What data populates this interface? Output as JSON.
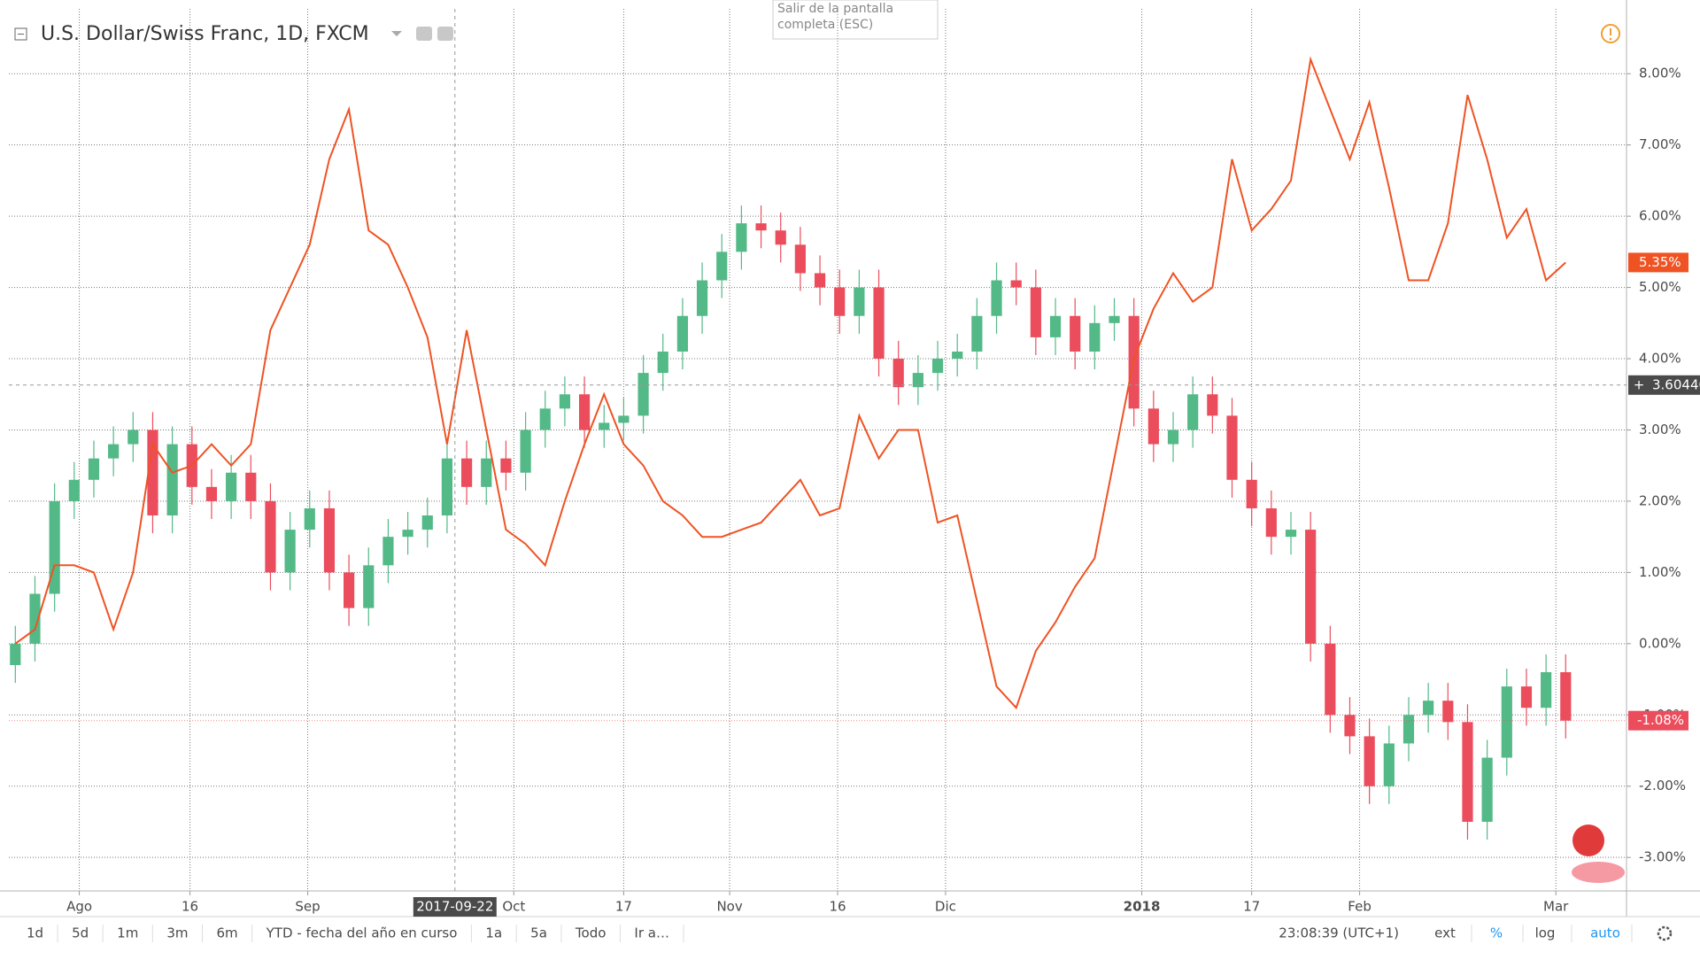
{
  "chart_data": {
    "type": "candlestick",
    "title": "U.S. Dollar/Swiss Franc, 1D, FXCM",
    "tooltip": "Salir de la pantalla completa (ESC)",
    "ylim": [
      -3.47,
      8.91
    ],
    "yticks": [
      {
        "value": -3,
        "label": "-3.00%"
      },
      {
        "value": -2,
        "label": "-2.00%"
      },
      {
        "value": -1,
        "label": "-1.00%"
      },
      {
        "value": 0,
        "label": "0.00%"
      },
      {
        "value": 1,
        "label": "1.00%"
      },
      {
        "value": 2,
        "label": "2.00%"
      },
      {
        "value": 3,
        "label": "3.00%"
      },
      {
        "value": 4,
        "label": "4.00%"
      },
      {
        "value": 5,
        "label": "5.00%"
      },
      {
        "value": 6,
        "label": "6.00%"
      },
      {
        "value": 7,
        "label": "7.00%"
      },
      {
        "value": 8,
        "label": "8.00%"
      }
    ],
    "xlim": [
      -0.33,
      82.1
    ],
    "xticks": [
      {
        "value": 3.26,
        "label": "Ago"
      },
      {
        "value": 8.9,
        "label": "16"
      },
      {
        "value": 14.9,
        "label": "Sep"
      },
      {
        "value": 25.4,
        "label": "Oct"
      },
      {
        "value": 31.0,
        "label": "17"
      },
      {
        "value": 36.4,
        "label": "Nov"
      },
      {
        "value": 41.9,
        "label": "16"
      },
      {
        "value": 47.4,
        "label": "Dic"
      },
      {
        "value": 57.4,
        "label": "2018"
      },
      {
        "value": 63.0,
        "label": "17"
      },
      {
        "value": 68.5,
        "label": "Feb"
      },
      {
        "value": 78.5,
        "label": "Mar"
      }
    ],
    "grid": true,
    "crosshair": {
      "x": 22.4,
      "x_label": "2017-09-22",
      "y": 3.63,
      "y_label": "3.60440"
    },
    "candles": {
      "up_color": "#53b987",
      "down_color": "#eb4d5c",
      "last_label": "-1.08%",
      "open": [
        -0.3,
        0.0,
        0.7,
        2.0,
        2.3,
        2.6,
        2.8,
        3.0,
        1.8,
        2.8,
        2.2,
        2.0,
        2.4,
        2.0,
        1.0,
        1.6,
        1.9,
        1.0,
        0.5,
        1.1,
        1.5,
        1.6,
        1.8,
        2.6,
        2.2,
        2.6,
        2.4,
        3.0,
        3.3,
        3.5,
        3.0,
        3.1,
        3.2,
        3.8,
        4.1,
        4.6,
        5.1,
        5.5,
        5.9,
        5.8,
        5.6,
        5.2,
        5.0,
        4.6,
        5.0,
        4.0,
        3.6,
        3.8,
        4.0,
        4.1,
        4.6,
        5.1,
        5.0,
        4.3,
        4.6,
        4.1,
        4.5,
        4.6,
        3.3,
        2.8,
        3.0,
        3.5,
        3.2,
        2.3,
        1.9,
        1.5,
        1.6,
        0.0,
        -1.0,
        -1.3,
        -2.0,
        -1.4,
        -1.0,
        -0.8,
        -1.1,
        -2.5,
        -1.6,
        -0.6,
        -0.9,
        -0.4
      ],
      "high": [
        0.25,
        0.95,
        2.25,
        2.55,
        2.85,
        3.05,
        3.25,
        3.25,
        3.05,
        3.05,
        2.45,
        2.65,
        2.65,
        2.25,
        1.85,
        2.15,
        2.15,
        1.25,
        1.35,
        1.75,
        1.85,
        2.05,
        2.85,
        2.85,
        2.85,
        2.85,
        3.25,
        3.55,
        3.75,
        3.75,
        3.35,
        3.45,
        4.05,
        4.35,
        4.85,
        5.35,
        5.75,
        6.15,
        6.15,
        6.05,
        5.85,
        5.45,
        5.25,
        5.25,
        5.25,
        4.25,
        4.05,
        4.25,
        4.35,
        4.85,
        5.35,
        5.35,
        5.25,
        4.85,
        4.85,
        4.75,
        4.85,
        4.85,
        3.55,
        3.25,
        3.75,
        3.75,
        3.45,
        2.55,
        2.15,
        1.85,
        1.85,
        0.25,
        -0.75,
        -1.05,
        -1.15,
        -0.75,
        -0.55,
        -0.55,
        -0.85,
        -1.35,
        -0.35,
        -0.35,
        -0.15,
        -0.15
      ],
      "low": [
        -0.55,
        -0.25,
        0.45,
        1.75,
        2.05,
        2.35,
        2.55,
        1.55,
        1.55,
        1.95,
        1.75,
        1.75,
        1.75,
        0.75,
        0.75,
        1.35,
        0.75,
        0.25,
        0.25,
        0.85,
        1.25,
        1.35,
        1.55,
        1.95,
        1.95,
        2.15,
        2.15,
        2.75,
        3.05,
        2.75,
        2.75,
        2.85,
        2.95,
        3.55,
        3.85,
        4.35,
        4.85,
        5.25,
        5.55,
        5.35,
        4.95,
        4.75,
        4.35,
        4.35,
        3.75,
        3.35,
        3.35,
        3.55,
        3.75,
        3.85,
        4.35,
        4.75,
        4.05,
        4.05,
        3.85,
        3.85,
        4.25,
        3.05,
        2.55,
        2.55,
        2.75,
        2.95,
        2.05,
        1.65,
        1.25,
        1.25,
        -0.25,
        -1.25,
        -1.55,
        -2.25,
        -2.25,
        -1.65,
        -1.25,
        -1.35,
        -2.75,
        -2.75,
        -1.85,
        -1.15,
        -1.15,
        -1.33
      ],
      "close": [
        0.0,
        0.7,
        2.0,
        2.3,
        2.6,
        2.8,
        3.0,
        1.8,
        2.8,
        2.2,
        2.0,
        2.4,
        2.0,
        1.0,
        1.6,
        1.9,
        1.0,
        0.5,
        1.1,
        1.5,
        1.6,
        1.8,
        2.6,
        2.2,
        2.6,
        2.4,
        3.0,
        3.3,
        3.5,
        3.0,
        3.1,
        3.2,
        3.8,
        4.1,
        4.6,
        5.1,
        5.5,
        5.9,
        5.8,
        5.6,
        5.2,
        5.0,
        4.6,
        5.0,
        4.0,
        3.6,
        3.8,
        4.0,
        4.1,
        4.6,
        5.1,
        5.0,
        4.3,
        4.6,
        4.1,
        4.5,
        4.6,
        3.3,
        2.8,
        3.0,
        3.5,
        3.2,
        2.3,
        1.9,
        1.5,
        1.6,
        0.0,
        -1.0,
        -1.3,
        -2.0,
        -1.4,
        -1.0,
        -0.8,
        -1.1,
        -2.5,
        -1.6,
        -0.6,
        -0.9,
        -0.4,
        -1.08
      ]
    },
    "series": [
      {
        "color": "#ef5323",
        "last_label": "5.35%",
        "values": [
          0.0,
          0.2,
          1.1,
          1.1,
          1.0,
          0.2,
          1.0,
          2.8,
          2.4,
          2.5,
          2.8,
          2.5,
          2.8,
          4.4,
          5.0,
          5.6,
          6.8,
          7.5,
          5.8,
          5.6,
          5.0,
          4.3,
          2.8,
          4.4,
          3.0,
          1.6,
          1.4,
          1.1,
          2.0,
          2.8,
          3.5,
          2.8,
          2.5,
          2.0,
          1.8,
          1.5,
          1.5,
          1.6,
          1.7,
          2.0,
          2.3,
          1.8,
          1.9,
          3.2,
          2.6,
          3.0,
          3.0,
          1.7,
          1.8,
          0.6,
          -0.6,
          -0.9,
          -0.1,
          0.3,
          0.8,
          1.2,
          2.6,
          4.0,
          4.7,
          5.2,
          4.8,
          5.0,
          6.8,
          5.8,
          6.1,
          6.5,
          8.2,
          7.5,
          6.8,
          7.6,
          6.4,
          5.1,
          5.1,
          5.9,
          7.7,
          6.8,
          5.7,
          6.1,
          5.1,
          5.35
        ]
      }
    ],
    "toolbar": {
      "ranges": [
        "1d",
        "5d",
        "1m",
        "3m",
        "6m",
        "YTD - fecha del año en curso",
        "1a",
        "5a",
        "Todo",
        "Ir a…"
      ],
      "time": "23:08:39 (UTC+1)",
      "options": [
        "ext",
        "%",
        "log",
        "auto"
      ]
    }
  }
}
